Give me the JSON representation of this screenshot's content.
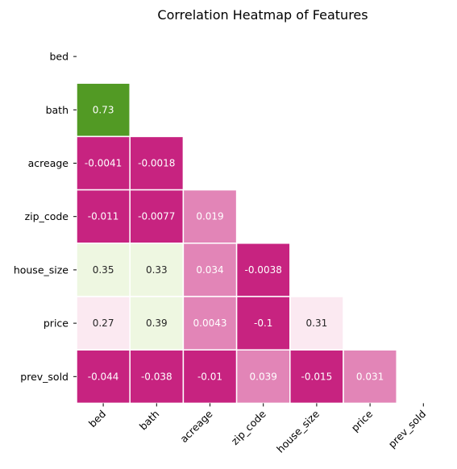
{
  "chart_data": {
    "type": "heatmap",
    "title": "Correlation Heatmap of Features",
    "variables": [
      "bed",
      "bath",
      "acreage",
      "zip_code",
      "house_size",
      "price",
      "prev_sold"
    ],
    "mask": "upper-triangle-including-diagonal",
    "colormap": "PiYG",
    "colorbar": false,
    "cell_border_color": "#ffffff",
    "cells": [
      {
        "row": "bath",
        "col": "bed",
        "value": 0.73,
        "label": "0.73",
        "color": "#529a24",
        "text_color": "#ffffff"
      },
      {
        "row": "acreage",
        "col": "bed",
        "value": -0.0041,
        "label": "-0.0041",
        "color": "#c72380",
        "text_color": "#ffffff"
      },
      {
        "row": "acreage",
        "col": "bath",
        "value": -0.0018,
        "label": "-0.0018",
        "color": "#c72380",
        "text_color": "#ffffff"
      },
      {
        "row": "zip_code",
        "col": "bed",
        "value": -0.011,
        "label": "-0.011",
        "color": "#c72380",
        "text_color": "#ffffff"
      },
      {
        "row": "zip_code",
        "col": "bath",
        "value": -0.0077,
        "label": "-0.0077",
        "color": "#c72380",
        "text_color": "#ffffff"
      },
      {
        "row": "zip_code",
        "col": "acreage",
        "value": 0.019,
        "label": "0.019",
        "color": "#e285b7",
        "text_color": "#ffffff"
      },
      {
        "row": "house_size",
        "col": "bed",
        "value": 0.35,
        "label": "0.35",
        "color": "#eef7e1",
        "text_color": "#262626"
      },
      {
        "row": "house_size",
        "col": "bath",
        "value": 0.33,
        "label": "0.33",
        "color": "#eef7e1",
        "text_color": "#262626"
      },
      {
        "row": "house_size",
        "col": "acreage",
        "value": 0.034,
        "label": "0.034",
        "color": "#e285b7",
        "text_color": "#ffffff"
      },
      {
        "row": "house_size",
        "col": "zip_code",
        "value": -0.0038,
        "label": "-0.0038",
        "color": "#c72380",
        "text_color": "#ffffff"
      },
      {
        "row": "price",
        "col": "bed",
        "value": 0.27,
        "label": "0.27",
        "color": "#fbe9f1",
        "text_color": "#262626"
      },
      {
        "row": "price",
        "col": "bath",
        "value": 0.39,
        "label": "0.39",
        "color": "#eef7e1",
        "text_color": "#262626"
      },
      {
        "row": "price",
        "col": "acreage",
        "value": 0.0043,
        "label": "0.0043",
        "color": "#e285b7",
        "text_color": "#ffffff"
      },
      {
        "row": "price",
        "col": "zip_code",
        "value": -0.1,
        "label": "-0.1",
        "color": "#c72380",
        "text_color": "#ffffff"
      },
      {
        "row": "price",
        "col": "house_size",
        "value": 0.31,
        "label": "0.31",
        "color": "#fbe9f1",
        "text_color": "#262626"
      },
      {
        "row": "prev_sold",
        "col": "bed",
        "value": -0.044,
        "label": "-0.044",
        "color": "#c72380",
        "text_color": "#ffffff"
      },
      {
        "row": "prev_sold",
        "col": "bath",
        "value": -0.038,
        "label": "-0.038",
        "color": "#c72380",
        "text_color": "#ffffff"
      },
      {
        "row": "prev_sold",
        "col": "acreage",
        "value": -0.01,
        "label": "-0.01",
        "color": "#c72380",
        "text_color": "#ffffff"
      },
      {
        "row": "prev_sold",
        "col": "zip_code",
        "value": 0.039,
        "label": "0.039",
        "color": "#e285b7",
        "text_color": "#ffffff"
      },
      {
        "row": "prev_sold",
        "col": "house_size",
        "value": -0.015,
        "label": "-0.015",
        "color": "#c72380",
        "text_color": "#ffffff"
      },
      {
        "row": "prev_sold",
        "col": "price",
        "value": 0.031,
        "label": "0.031",
        "color": "#e285b7",
        "text_color": "#ffffff"
      }
    ]
  }
}
